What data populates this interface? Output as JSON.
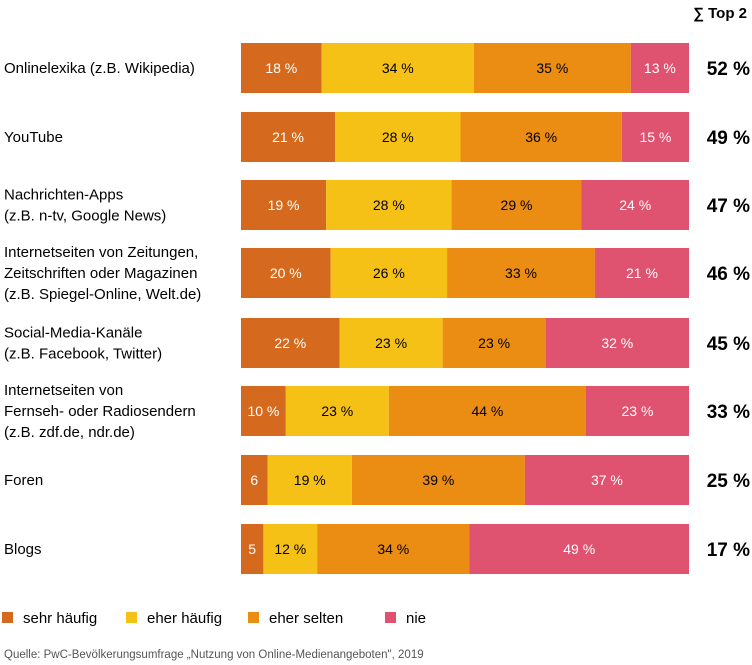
{
  "chart_data": {
    "type": "bar",
    "orientation": "horizontal-stacked-100",
    "header": "∑ Top 2",
    "categories": [
      [
        "Onlinelexika (z.B. Wikipedia)"
      ],
      [
        "YouTube"
      ],
      [
        "Nachrichten-Apps",
        "(z.B. n-tv, Google News)"
      ],
      [
        "Internetseiten von Zeitungen,",
        "Zeitschriften oder Magazinen",
        "(z.B. Spiegel-Online, Welt.de)"
      ],
      [
        "Social-Media-Kanäle",
        "(z.B. Facebook, Twitter)"
      ],
      [
        "Internetseiten von",
        "Fernseh- oder Radiosendern",
        "(z.B. zdf.de, ndr.de)"
      ],
      [
        "Foren"
      ],
      [
        "Blogs"
      ]
    ],
    "series": [
      {
        "name": "sehr häufig",
        "color": "#d5691e",
        "text_color": "#ffffff",
        "values": [
          18,
          21,
          19,
          20,
          22,
          10,
          6,
          5
        ],
        "labels": [
          "18 %",
          "21 %",
          "19 %",
          "20 %",
          "22 %",
          "10 %",
          "6",
          "5"
        ]
      },
      {
        "name": "eher häufig",
        "color": "#f6c117",
        "text_color": "#000000",
        "values": [
          34,
          28,
          28,
          26,
          23,
          23,
          19,
          12
        ],
        "labels": [
          "34 %",
          "28 %",
          "28 %",
          "26 %",
          "23 %",
          "23 %",
          "19 %",
          "12 %"
        ]
      },
      {
        "name": "eher selten",
        "color": "#eb8c13",
        "text_color": "#000000",
        "values": [
          35,
          36,
          29,
          33,
          23,
          44,
          39,
          34
        ],
        "labels": [
          "35 %",
          "36 %",
          "29 %",
          "33 %",
          "23 %",
          "44 %",
          "39 %",
          "34 %"
        ]
      },
      {
        "name": "nie",
        "color": "#df5270",
        "text_color": "#ffffff",
        "values": [
          13,
          15,
          24,
          21,
          32,
          23,
          37,
          49
        ],
        "labels": [
          "13 %",
          "15 %",
          "24 %",
          "21 %",
          "32 %",
          "23 %",
          "37 %",
          "49 %"
        ]
      }
    ],
    "top2": [
      "52 %",
      "49 %",
      "47 %",
      "46 %",
      "45 %",
      "33 %",
      "25 %",
      "17 %"
    ],
    "xlim": [
      0,
      100
    ],
    "legend_position": "bottom",
    "source": "Quelle: PwC-Bevölkerungsumfrage „Nutzung von Online-Medienangeboten\", 2019"
  }
}
